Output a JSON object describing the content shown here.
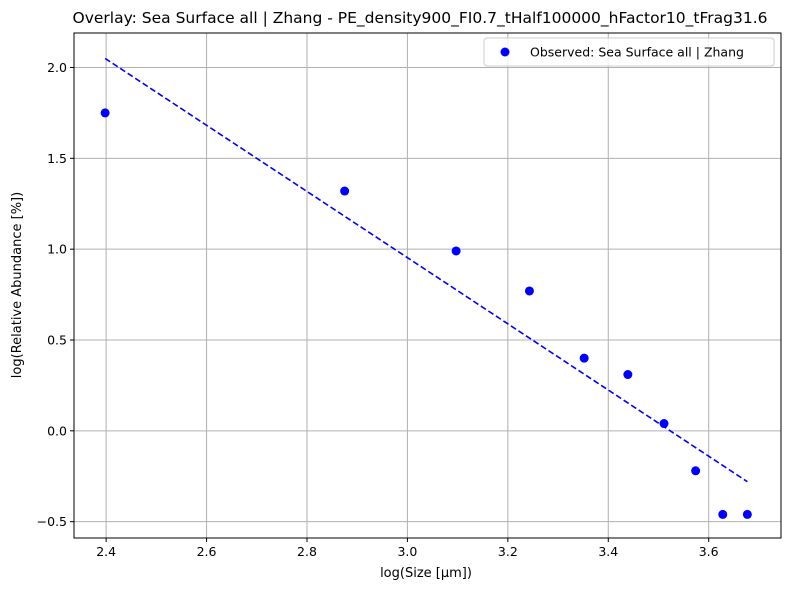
{
  "chart_data": {
    "type": "scatter",
    "title": "Overlay: Sea Surface all | Zhang - PE_density900_FI0.7_tHalf100000_hFactor10_tFrag31.6",
    "xlabel": "log(Size [μm])",
    "ylabel": "log(Relative Abundance [%])",
    "xlim": [
      2.336,
      3.744
    ],
    "ylim": [
      -0.59,
      2.19
    ],
    "xticks": [
      "2.4",
      "2.6",
      "2.8",
      "3.0",
      "3.2",
      "3.4",
      "3.6"
    ],
    "xtick_values": [
      2.4,
      2.6,
      2.8,
      3.0,
      3.2,
      3.4,
      3.6
    ],
    "yticks": [
      "−0.5",
      "0.0",
      "0.5",
      "1.0",
      "1.5",
      "2.0"
    ],
    "ytick_values": [
      -0.5,
      0.0,
      0.5,
      1.0,
      1.5,
      2.0
    ],
    "grid": true,
    "legend_position": "top-right",
    "series": [
      {
        "name": "Observed: Sea Surface all | Zhang",
        "kind": "scatter",
        "color": "#0000ff",
        "x": [
          2.398,
          2.875,
          3.097,
          3.243,
          3.352,
          3.439,
          3.511,
          3.574,
          3.628,
          3.677
        ],
        "y": [
          1.75,
          1.32,
          0.99,
          0.77,
          0.4,
          0.31,
          0.04,
          -0.22,
          -0.46,
          -0.46
        ]
      },
      {
        "kind": "line",
        "style": "dashed",
        "color": "#0000ff",
        "x": [
          2.398,
          3.677
        ],
        "y": [
          2.05,
          -0.28
        ]
      }
    ]
  },
  "colors": {
    "grid": "#b0b0b0",
    "marker": "#0000ff",
    "fit_line": "#0000ff",
    "legend_border": "#cccccc"
  }
}
